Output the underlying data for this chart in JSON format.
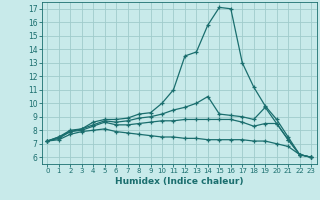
{
  "xlabel": "Humidex (Indice chaleur)",
  "ylabel": "",
  "xlim": [
    -0.5,
    23.5
  ],
  "ylim": [
    5.5,
    17.5
  ],
  "yticks": [
    6,
    7,
    8,
    9,
    10,
    11,
    12,
    13,
    14,
    15,
    16,
    17
  ],
  "xticks": [
    0,
    1,
    2,
    3,
    4,
    5,
    6,
    7,
    8,
    9,
    10,
    11,
    12,
    13,
    14,
    15,
    16,
    17,
    18,
    19,
    20,
    21,
    22,
    23
  ],
  "background_color": "#c8eaea",
  "grid_color": "#a0cccc",
  "line_color": "#1a6e6e",
  "lines": [
    {
      "x": [
        0,
        1,
        2,
        3,
        4,
        5,
        6,
        7,
        8,
        9,
        10,
        11,
        12,
        13,
        14,
        15,
        16,
        17,
        18,
        19,
        20,
        21,
        22,
        23
      ],
      "y": [
        7.2,
        7.5,
        8.0,
        8.1,
        8.6,
        8.8,
        8.8,
        8.9,
        9.2,
        9.3,
        10.0,
        11.0,
        13.5,
        13.8,
        15.8,
        17.1,
        17.0,
        13.0,
        11.2,
        9.8,
        8.8,
        7.5,
        6.2,
        6.0
      ]
    },
    {
      "x": [
        0,
        1,
        2,
        3,
        4,
        5,
        6,
        7,
        8,
        9,
        10,
        11,
        12,
        13,
        14,
        15,
        16,
        17,
        18,
        19,
        20,
        21,
        22,
        23
      ],
      "y": [
        7.2,
        7.5,
        7.9,
        8.1,
        8.4,
        8.7,
        8.6,
        8.7,
        8.9,
        9.0,
        9.2,
        9.5,
        9.7,
        10.0,
        10.5,
        9.2,
        9.1,
        9.0,
        8.8,
        9.7,
        8.5,
        7.3,
        6.2,
        6.0
      ]
    },
    {
      "x": [
        0,
        1,
        2,
        3,
        4,
        5,
        6,
        7,
        8,
        9,
        10,
        11,
        12,
        13,
        14,
        15,
        16,
        17,
        18,
        19,
        20,
        21,
        22,
        23
      ],
      "y": [
        7.2,
        7.4,
        7.9,
        8.0,
        8.3,
        8.6,
        8.4,
        8.4,
        8.5,
        8.6,
        8.7,
        8.7,
        8.8,
        8.8,
        8.8,
        8.8,
        8.8,
        8.6,
        8.3,
        8.5,
        8.5,
        7.3,
        6.2,
        6.0
      ]
    },
    {
      "x": [
        0,
        1,
        2,
        3,
        4,
        5,
        6,
        7,
        8,
        9,
        10,
        11,
        12,
        13,
        14,
        15,
        16,
        17,
        18,
        19,
        20,
        21,
        22,
        23
      ],
      "y": [
        7.2,
        7.3,
        7.7,
        7.9,
        8.0,
        8.1,
        7.9,
        7.8,
        7.7,
        7.6,
        7.5,
        7.5,
        7.4,
        7.4,
        7.3,
        7.3,
        7.3,
        7.3,
        7.2,
        7.2,
        7.0,
        6.8,
        6.2,
        6.0
      ]
    }
  ]
}
